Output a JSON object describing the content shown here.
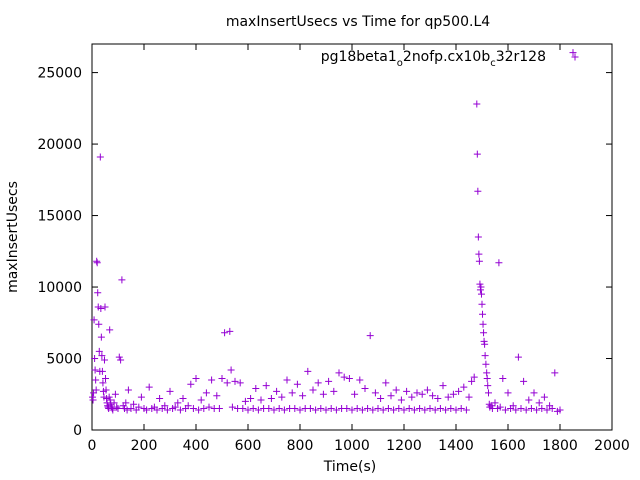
{
  "chart_data": {
    "type": "scatter",
    "title": "maxInsertUsecs vs Time for qp500.L4",
    "xlabel": "Time(s)",
    "ylabel": "maxInsertUsecs",
    "xlim": [
      0,
      2000
    ],
    "ylim": [
      0,
      27000
    ],
    "xticks": [
      "0",
      "200",
      "400",
      "600",
      "800",
      "1000",
      "1200",
      "1400",
      "1600",
      "1800",
      "2000"
    ],
    "yticks": [
      "0",
      "5000",
      "10000",
      "15000",
      "20000",
      "25000"
    ],
    "grid": false,
    "legend_position": "top-right",
    "marker": "+",
    "series": [
      {
        "name_main": "pg18beta1",
        "name_sub1": "o",
        "name_mid": "2nofp.cx10b",
        "name_sub2": "c",
        "name_end": "32r128",
        "color": "#9400d3",
        "points": [
          [
            2,
            2300
          ],
          [
            4,
            2100
          ],
          [
            6,
            2600
          ],
          [
            8,
            7700
          ],
          [
            10,
            5000
          ],
          [
            12,
            4200
          ],
          [
            14,
            3500
          ],
          [
            16,
            2800
          ],
          [
            18,
            11800
          ],
          [
            20,
            11700
          ],
          [
            22,
            9600
          ],
          [
            24,
            8600
          ],
          [
            26,
            7400
          ],
          [
            28,
            5500
          ],
          [
            30,
            4100
          ],
          [
            32,
            19100
          ],
          [
            34,
            8500
          ],
          [
            36,
            6500
          ],
          [
            38,
            5200
          ],
          [
            40,
            4100
          ],
          [
            42,
            3300
          ],
          [
            44,
            2700
          ],
          [
            46,
            2300
          ],
          [
            48,
            4900
          ],
          [
            50,
            8600
          ],
          [
            52,
            3600
          ],
          [
            54,
            2800
          ],
          [
            56,
            2200
          ],
          [
            58,
            1900
          ],
          [
            60,
            1700
          ],
          [
            62,
            1600
          ],
          [
            64,
            1500
          ],
          [
            66,
            2300
          ],
          [
            68,
            7000
          ],
          [
            70,
            2100
          ],
          [
            72,
            1800
          ],
          [
            75,
            1600
          ],
          [
            78,
            1500
          ],
          [
            80,
            1400
          ],
          [
            85,
            1900
          ],
          [
            90,
            2500
          ],
          [
            95,
            1600
          ],
          [
            100,
            1500
          ],
          [
            105,
            5100
          ],
          [
            110,
            4900
          ],
          [
            115,
            10500
          ],
          [
            120,
            1700
          ],
          [
            125,
            1500
          ],
          [
            130,
            1900
          ],
          [
            135,
            1400
          ],
          [
            140,
            2800
          ],
          [
            150,
            1500
          ],
          [
            160,
            1800
          ],
          [
            170,
            1400
          ],
          [
            180,
            1600
          ],
          [
            190,
            2300
          ],
          [
            200,
            1500
          ],
          [
            210,
            1400
          ],
          [
            220,
            3000
          ],
          [
            230,
            1500
          ],
          [
            240,
            1600
          ],
          [
            250,
            1400
          ],
          [
            260,
            2200
          ],
          [
            270,
            1500
          ],
          [
            280,
            1700
          ],
          [
            290,
            1400
          ],
          [
            300,
            2700
          ],
          [
            310,
            1500
          ],
          [
            320,
            1600
          ],
          [
            330,
            1900
          ],
          [
            340,
            1400
          ],
          [
            350,
            2200
          ],
          [
            360,
            1500
          ],
          [
            370,
            1700
          ],
          [
            380,
            3200
          ],
          [
            390,
            1500
          ],
          [
            400,
            3600
          ],
          [
            410,
            1400
          ],
          [
            420,
            2100
          ],
          [
            430,
            1500
          ],
          [
            440,
            2600
          ],
          [
            450,
            1600
          ],
          [
            460,
            3500
          ],
          [
            470,
            1500
          ],
          [
            480,
            2400
          ],
          [
            490,
            1500
          ],
          [
            500,
            3600
          ],
          [
            510,
            6800
          ],
          [
            520,
            3300
          ],
          [
            530,
            6900
          ],
          [
            535,
            4200
          ],
          [
            540,
            1600
          ],
          [
            550,
            3400
          ],
          [
            560,
            1500
          ],
          [
            570,
            3300
          ],
          [
            580,
            1500
          ],
          [
            590,
            2000
          ],
          [
            600,
            1400
          ],
          [
            610,
            2200
          ],
          [
            620,
            1500
          ],
          [
            630,
            2900
          ],
          [
            640,
            1400
          ],
          [
            650,
            2100
          ],
          [
            660,
            1500
          ],
          [
            670,
            3100
          ],
          [
            680,
            1500
          ],
          [
            690,
            2200
          ],
          [
            700,
            1400
          ],
          [
            710,
            2700
          ],
          [
            720,
            1500
          ],
          [
            730,
            2300
          ],
          [
            740,
            1400
          ],
          [
            750,
            3500
          ],
          [
            760,
            1500
          ],
          [
            770,
            2600
          ],
          [
            780,
            1500
          ],
          [
            790,
            3200
          ],
          [
            800,
            1400
          ],
          [
            810,
            2400
          ],
          [
            820,
            1500
          ],
          [
            830,
            4100
          ],
          [
            840,
            1500
          ],
          [
            850,
            2800
          ],
          [
            860,
            1400
          ],
          [
            870,
            3300
          ],
          [
            880,
            1500
          ],
          [
            890,
            2500
          ],
          [
            900,
            1400
          ],
          [
            910,
            3400
          ],
          [
            920,
            1500
          ],
          [
            930,
            2700
          ],
          [
            940,
            1400
          ],
          [
            950,
            4000
          ],
          [
            960,
            1500
          ],
          [
            970,
            3700
          ],
          [
            980,
            1500
          ],
          [
            990,
            3600
          ],
          [
            1000,
            1400
          ],
          [
            1010,
            2500
          ],
          [
            1020,
            1500
          ],
          [
            1030,
            3500
          ],
          [
            1040,
            1400
          ],
          [
            1050,
            2900
          ],
          [
            1060,
            1500
          ],
          [
            1070,
            6600
          ],
          [
            1080,
            1400
          ],
          [
            1090,
            2600
          ],
          [
            1100,
            1500
          ],
          [
            1110,
            2200
          ],
          [
            1120,
            1400
          ],
          [
            1130,
            3300
          ],
          [
            1140,
            1500
          ],
          [
            1150,
            2400
          ],
          [
            1160,
            1400
          ],
          [
            1170,
            2800
          ],
          [
            1180,
            1500
          ],
          [
            1190,
            2100
          ],
          [
            1200,
            1400
          ],
          [
            1210,
            2700
          ],
          [
            1220,
            1500
          ],
          [
            1230,
            2300
          ],
          [
            1240,
            1400
          ],
          [
            1250,
            2600
          ],
          [
            1260,
            1500
          ],
          [
            1270,
            2500
          ],
          [
            1280,
            1400
          ],
          [
            1290,
            2800
          ],
          [
            1300,
            1500
          ],
          [
            1310,
            2400
          ],
          [
            1320,
            1400
          ],
          [
            1330,
            2200
          ],
          [
            1340,
            1500
          ],
          [
            1350,
            3100
          ],
          [
            1360,
            1400
          ],
          [
            1370,
            2300
          ],
          [
            1380,
            1500
          ],
          [
            1390,
            2500
          ],
          [
            1400,
            1400
          ],
          [
            1410,
            2700
          ],
          [
            1420,
            1500
          ],
          [
            1430,
            3000
          ],
          [
            1440,
            1400
          ],
          [
            1450,
            2300
          ],
          [
            1460,
            3400
          ],
          [
            1470,
            3700
          ],
          [
            1480,
            22800
          ],
          [
            1482,
            19300
          ],
          [
            1484,
            16700
          ],
          [
            1486,
            13500
          ],
          [
            1488,
            12300
          ],
          [
            1490,
            11800
          ],
          [
            1492,
            10200
          ],
          [
            1494,
            9800
          ],
          [
            1496,
            10000
          ],
          [
            1498,
            9500
          ],
          [
            1500,
            8800
          ],
          [
            1502,
            8100
          ],
          [
            1504,
            7400
          ],
          [
            1506,
            6800
          ],
          [
            1508,
            6200
          ],
          [
            1510,
            6000
          ],
          [
            1512,
            5200
          ],
          [
            1515,
            4600
          ],
          [
            1518,
            4000
          ],
          [
            1520,
            3600
          ],
          [
            1522,
            3100
          ],
          [
            1525,
            2600
          ],
          [
            1528,
            1800
          ],
          [
            1530,
            1600
          ],
          [
            1535,
            1700
          ],
          [
            1540,
            1500
          ],
          [
            1550,
            1900
          ],
          [
            1560,
            1500
          ],
          [
            1565,
            11700
          ],
          [
            1570,
            1600
          ],
          [
            1580,
            3600
          ],
          [
            1590,
            1400
          ],
          [
            1600,
            2600
          ],
          [
            1610,
            1500
          ],
          [
            1620,
            1700
          ],
          [
            1630,
            1400
          ],
          [
            1640,
            5100
          ],
          [
            1650,
            1500
          ],
          [
            1660,
            3400
          ],
          [
            1670,
            1400
          ],
          [
            1680,
            2100
          ],
          [
            1690,
            1500
          ],
          [
            1700,
            2600
          ],
          [
            1710,
            1400
          ],
          [
            1720,
            1900
          ],
          [
            1730,
            1500
          ],
          [
            1740,
            2300
          ],
          [
            1750,
            1400
          ],
          [
            1760,
            1700
          ],
          [
            1770,
            1500
          ],
          [
            1780,
            4000
          ],
          [
            1790,
            1300
          ],
          [
            1800,
            1400
          ],
          [
            1850,
            26400
          ]
        ]
      }
    ]
  }
}
